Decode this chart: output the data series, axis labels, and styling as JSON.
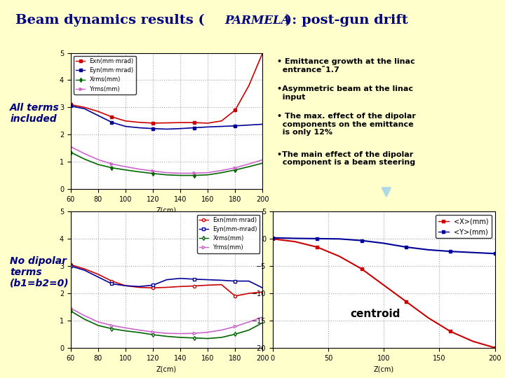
{
  "bg_color": "#ffffcc",
  "title": "Beam dynamics results (PARMELA): post-gun drift",
  "title_color": "#000080",
  "title_italic_part": "PARMELA",
  "plot1_label_top": "All terms\nincluded",
  "plot2_label_top": "No dipolar\nterms\n(b1=b2=0)",
  "z_top": [
    60,
    70,
    80,
    90,
    100,
    110,
    120,
    130,
    140,
    150,
    160,
    170,
    180,
    190,
    200
  ],
  "Exn_top": [
    3.1,
    3.0,
    2.85,
    2.65,
    2.5,
    2.45,
    2.42,
    2.43,
    2.44,
    2.44,
    2.42,
    2.5,
    2.9,
    3.8,
    5.0
  ],
  "Eyn_top": [
    3.05,
    2.95,
    2.7,
    2.45,
    2.3,
    2.25,
    2.22,
    2.2,
    2.22,
    2.25,
    2.28,
    2.3,
    2.32,
    2.35,
    2.38
  ],
  "Xrms_top": [
    1.35,
    1.1,
    0.9,
    0.78,
    0.7,
    0.63,
    0.57,
    0.52,
    0.5,
    0.5,
    0.52,
    0.6,
    0.7,
    0.82,
    0.95
  ],
  "Yrms_top": [
    1.55,
    1.3,
    1.08,
    0.92,
    0.82,
    0.73,
    0.66,
    0.6,
    0.58,
    0.58,
    0.6,
    0.68,
    0.78,
    0.92,
    1.07
  ],
  "z_bot": [
    60,
    70,
    80,
    90,
    100,
    110,
    120,
    130,
    140,
    150,
    160,
    170,
    180,
    190,
    200
  ],
  "Exn_bot": [
    3.05,
    2.9,
    2.7,
    2.45,
    2.28,
    2.22,
    2.2,
    2.22,
    2.25,
    2.27,
    2.3,
    2.32,
    1.9,
    2.0,
    2.05
  ],
  "Eyn_bot": [
    3.0,
    2.85,
    2.6,
    2.35,
    2.28,
    2.25,
    2.3,
    2.5,
    2.55,
    2.52,
    2.5,
    2.48,
    2.45,
    2.45,
    2.2
  ],
  "Xrms_bot": [
    1.35,
    1.05,
    0.82,
    0.7,
    0.62,
    0.56,
    0.48,
    0.42,
    0.38,
    0.36,
    0.34,
    0.38,
    0.5,
    0.65,
    0.92
  ],
  "Yrms_bot": [
    1.45,
    1.18,
    0.95,
    0.82,
    0.73,
    0.65,
    0.58,
    0.53,
    0.52,
    0.53,
    0.57,
    0.65,
    0.78,
    0.95,
    1.13
  ],
  "z_cent": [
    0,
    20,
    40,
    60,
    80,
    100,
    120,
    140,
    160,
    180,
    200
  ],
  "X_cent": [
    0.0,
    -0.5,
    -1.5,
    -3.2,
    -5.5,
    -8.5,
    -11.5,
    -14.5,
    -17.0,
    -18.8,
    -20.0
  ],
  "Y_cent": [
    0.2,
    0.1,
    0.05,
    0.0,
    -0.3,
    -0.8,
    -1.5,
    -2.0,
    -2.3,
    -2.5,
    -2.7
  ],
  "bullet_text": [
    "• Emittance growth at the linac\n  entrance˜1.7",
    "•Asymmetric beam at the linac\n  input",
    "• The max. effect of the dipolar\n  components on the emittance\n  is only 12%",
    "•The main effect of the dipolar\n  component is a beam steering"
  ],
  "legend_colors": [
    "#cc0000",
    "#000099",
    "#006600",
    "#cc66cc"
  ],
  "legend_labels_top": [
    "Exn(mm·mrad)",
    "Eyn(mm·mrad)",
    "Xrms(mm)",
    "Yrms(mm)"
  ],
  "legend_labels_bot": [
    "Exn(mm·mrad)",
    "Eyn(mm-mrad)",
    "Xrms(mm)",
    "Yrms(mm)"
  ],
  "legend_labels_cent": [
    "<X>(mm)",
    "<Y>(mm)"
  ],
  "legend_colors_cent": [
    "#cc0000",
    "#000099"
  ]
}
